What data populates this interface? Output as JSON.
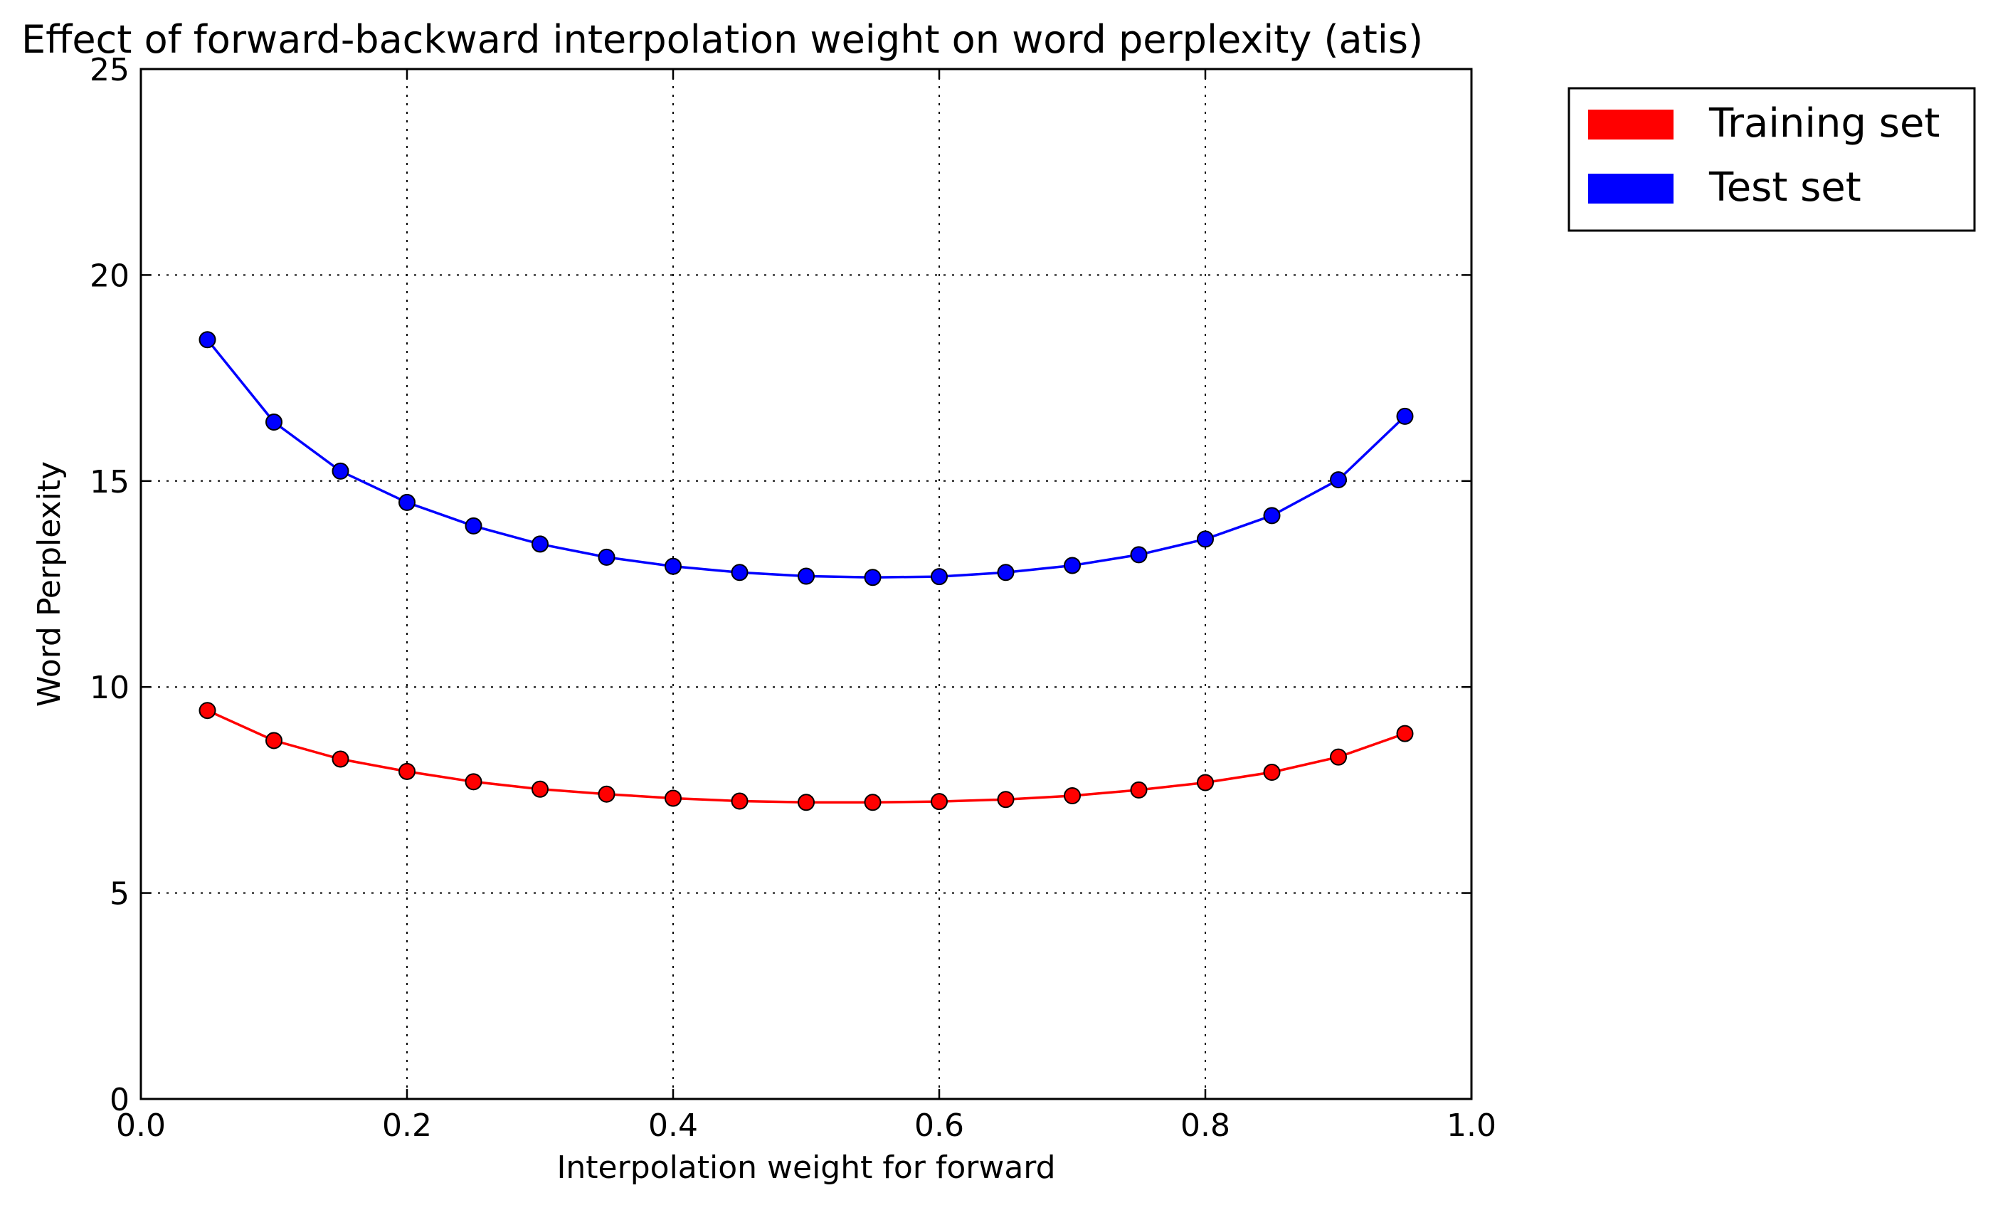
{
  "chart_data": {
    "type": "line",
    "title": "Effect of forward-backward interpolation weight on word perplexity (atis)",
    "xlabel": "Interpolation weight for forward",
    "ylabel": "Word Perplexity",
    "xlim": [
      0.0,
      1.0
    ],
    "ylim": [
      0,
      25
    ],
    "xticks": [
      0.0,
      0.2,
      0.4,
      0.6,
      0.8,
      1.0
    ],
    "xtick_labels": [
      "0.0",
      "0.2",
      "0.4",
      "0.6",
      "0.8",
      "1.0"
    ],
    "yticks": [
      0,
      5,
      10,
      15,
      20,
      25
    ],
    "ytick_labels": [
      "0",
      "5",
      "10",
      "15",
      "20",
      "25"
    ],
    "grid": true,
    "legend_position": "outside-top-right",
    "x": [
      0.05,
      0.1,
      0.15,
      0.2,
      0.25,
      0.3,
      0.35,
      0.4,
      0.45,
      0.5,
      0.55,
      0.6,
      0.65,
      0.7,
      0.75,
      0.8,
      0.85,
      0.9,
      0.95
    ],
    "series": [
      {
        "name": "Training set",
        "color": "#ff0000",
        "values": [
          9.43,
          8.7,
          8.25,
          7.95,
          7.7,
          7.52,
          7.4,
          7.3,
          7.23,
          7.2,
          7.2,
          7.22,
          7.27,
          7.36,
          7.5,
          7.68,
          7.93,
          8.3,
          8.87
        ]
      },
      {
        "name": "Test set",
        "color": "#0000ff",
        "values": [
          18.43,
          16.43,
          15.24,
          14.48,
          13.91,
          13.47,
          13.15,
          12.93,
          12.78,
          12.69,
          12.66,
          12.68,
          12.78,
          12.95,
          13.21,
          13.59,
          14.16,
          15.03,
          16.57
        ]
      }
    ]
  }
}
